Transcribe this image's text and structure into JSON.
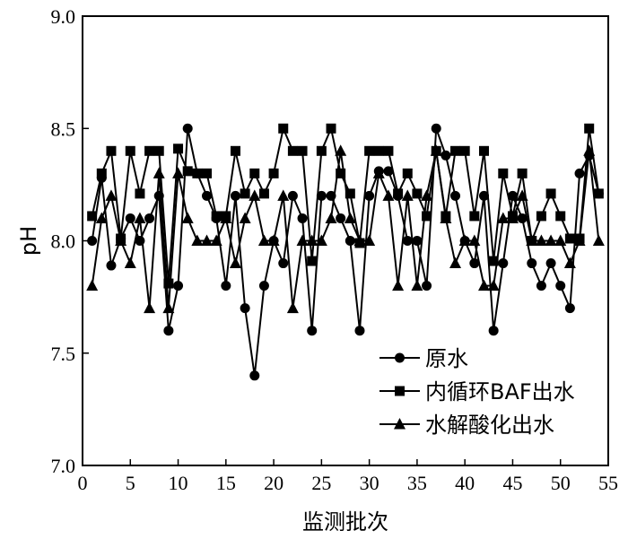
{
  "chart_data": {
    "type": "line",
    "xlabel": "监测批次",
    "ylabel": "pH",
    "xlim": [
      0,
      55
    ],
    "ylim": [
      7.0,
      9.0
    ],
    "x_ticks": [
      "0",
      "5",
      "10",
      "15",
      "20",
      "25",
      "30",
      "35",
      "40",
      "45",
      "50",
      "55"
    ],
    "y_ticks": [
      "7.0",
      "7.5",
      "8.0",
      "8.5",
      "9.0"
    ],
    "x": [
      1,
      2,
      3,
      4,
      5,
      6,
      7,
      8,
      9,
      10,
      11,
      12,
      13,
      14,
      15,
      16,
      17,
      18,
      19,
      20,
      21,
      22,
      23,
      24,
      25,
      26,
      27,
      28,
      29,
      30,
      31,
      32,
      33,
      34,
      35,
      36,
      37,
      38,
      39,
      40,
      41,
      42,
      43,
      44,
      45,
      46,
      47,
      48,
      49,
      50,
      51,
      52,
      53,
      54
    ],
    "legend_position": "lower-right",
    "grid": false,
    "series": [
      {
        "name": "原水",
        "marker": "circle",
        "values": [
          8.0,
          8.28,
          7.89,
          8.01,
          8.1,
          8.0,
          8.1,
          8.2,
          7.6,
          7.8,
          8.5,
          8.3,
          8.2,
          8.1,
          7.8,
          8.2,
          7.7,
          7.4,
          7.8,
          8.0,
          7.9,
          8.2,
          8.1,
          7.6,
          8.2,
          8.2,
          8.1,
          8.0,
          7.6,
          8.2,
          8.31,
          8.31,
          8.2,
          8.0,
          8.0,
          7.8,
          8.5,
          8.38,
          8.2,
          8.0,
          7.9,
          8.2,
          7.6,
          7.9,
          8.2,
          8.1,
          7.9,
          7.8,
          7.9,
          7.8,
          7.7,
          8.3,
          8.38,
          8.21
        ]
      },
      {
        "name": "内循环BAF出水",
        "marker": "square",
        "values": [
          8.11,
          8.3,
          8.4,
          8.01,
          8.4,
          8.21,
          8.4,
          8.4,
          7.81,
          8.41,
          8.31,
          8.3,
          8.3,
          8.11,
          8.11,
          8.4,
          8.21,
          8.3,
          8.21,
          8.3,
          8.5,
          8.4,
          8.4,
          7.91,
          8.4,
          8.5,
          8.3,
          8.21,
          7.99,
          8.4,
          8.4,
          8.4,
          8.21,
          8.3,
          8.21,
          8.11,
          8.4,
          8.11,
          8.4,
          8.4,
          8.11,
          8.4,
          7.91,
          8.3,
          8.11,
          8.3,
          8.0,
          8.11,
          8.21,
          8.11,
          8.01,
          8.01,
          8.5,
          8.21
        ]
      },
      {
        "name": "水解酸化出水",
        "marker": "triangle",
        "values": [
          7.8,
          8.1,
          8.2,
          8.0,
          7.9,
          8.1,
          7.7,
          8.3,
          7.7,
          8.3,
          8.1,
          8.0,
          8.0,
          8.0,
          8.1,
          7.9,
          8.1,
          8.2,
          8.0,
          8.0,
          8.2,
          7.7,
          8.0,
          8.0,
          8.0,
          8.1,
          8.4,
          8.1,
          8.0,
          8.0,
          8.3,
          8.2,
          7.8,
          8.2,
          7.8,
          8.2,
          8.4,
          8.1,
          7.9,
          8.0,
          8.0,
          7.8,
          7.8,
          8.1,
          8.1,
          8.2,
          8.0,
          8.0,
          8.0,
          8.0,
          7.9,
          8.0,
          8.4,
          8.0
        ]
      }
    ]
  }
}
